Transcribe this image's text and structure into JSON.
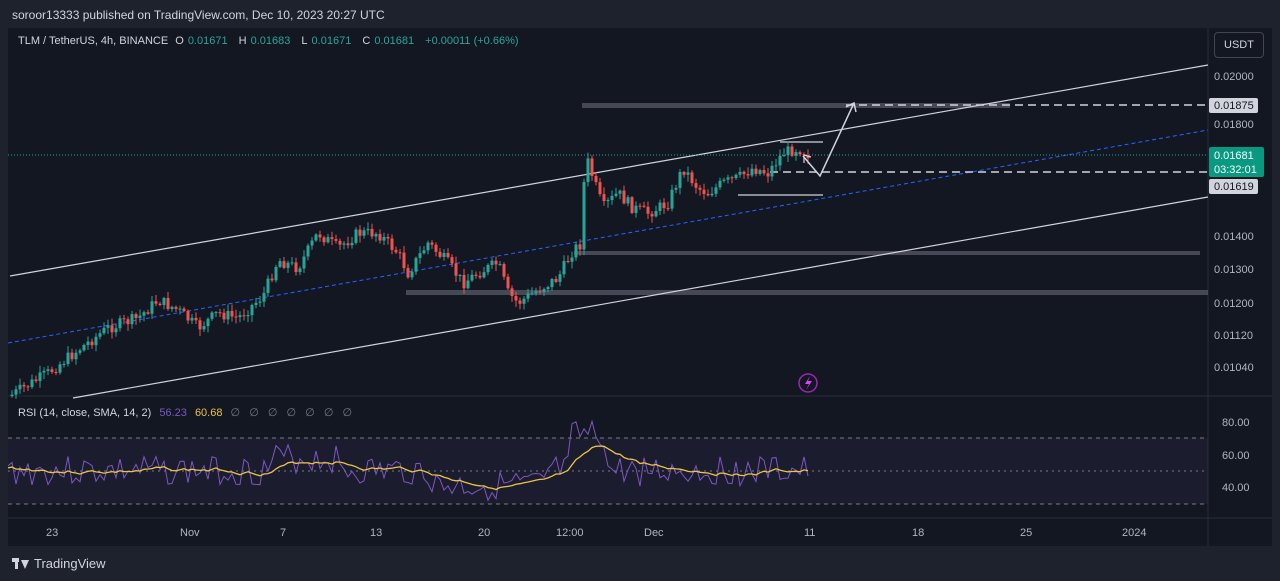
{
  "header": {
    "published_text": "soroor13333 published on TradingView.com, Dec 10, 2023 20:27 UTC"
  },
  "legend": {
    "symbol": "TLM / TetherUS, 4h, BINANCE",
    "open_label": "O",
    "open": "0.01671",
    "high_label": "H",
    "high": "0.01683",
    "low_label": "L",
    "low": "0.01671",
    "close_label": "C",
    "close": "0.01681",
    "change": "+0.00011 (+0.66%)"
  },
  "currency_button": "USDT",
  "price_axis": {
    "ticks": [
      "0.02000",
      "0.01800",
      "0.01400",
      "0.01300",
      "0.01200",
      "0.01120",
      "0.01040"
    ],
    "marker_upper": "0.01875",
    "current_price": "0.01681",
    "countdown": "03:32:01",
    "marker_lower": "0.01619"
  },
  "rsi": {
    "title": "RSI (14, close, SMA, 14, 2)",
    "rsi_value": "56.23",
    "sma_value": "60.68",
    "empty_values": [
      "∅",
      "∅",
      "∅",
      "∅",
      "∅",
      "∅",
      "∅"
    ],
    "ticks": [
      "80.00",
      "60.00",
      "40.00"
    ]
  },
  "time_axis": {
    "labels": [
      "23",
      "Nov",
      "7",
      "13",
      "20",
      "12:00",
      "Dec",
      "11",
      "18",
      "25",
      "2024"
    ]
  },
  "footer": {
    "brand": "TradingView"
  },
  "colors": {
    "background": "#131722",
    "up": "#26a69a",
    "down": "#ef5350",
    "rsi": "#7e57c2",
    "rsi_sma": "#e8c547",
    "accent": "#089981"
  }
}
